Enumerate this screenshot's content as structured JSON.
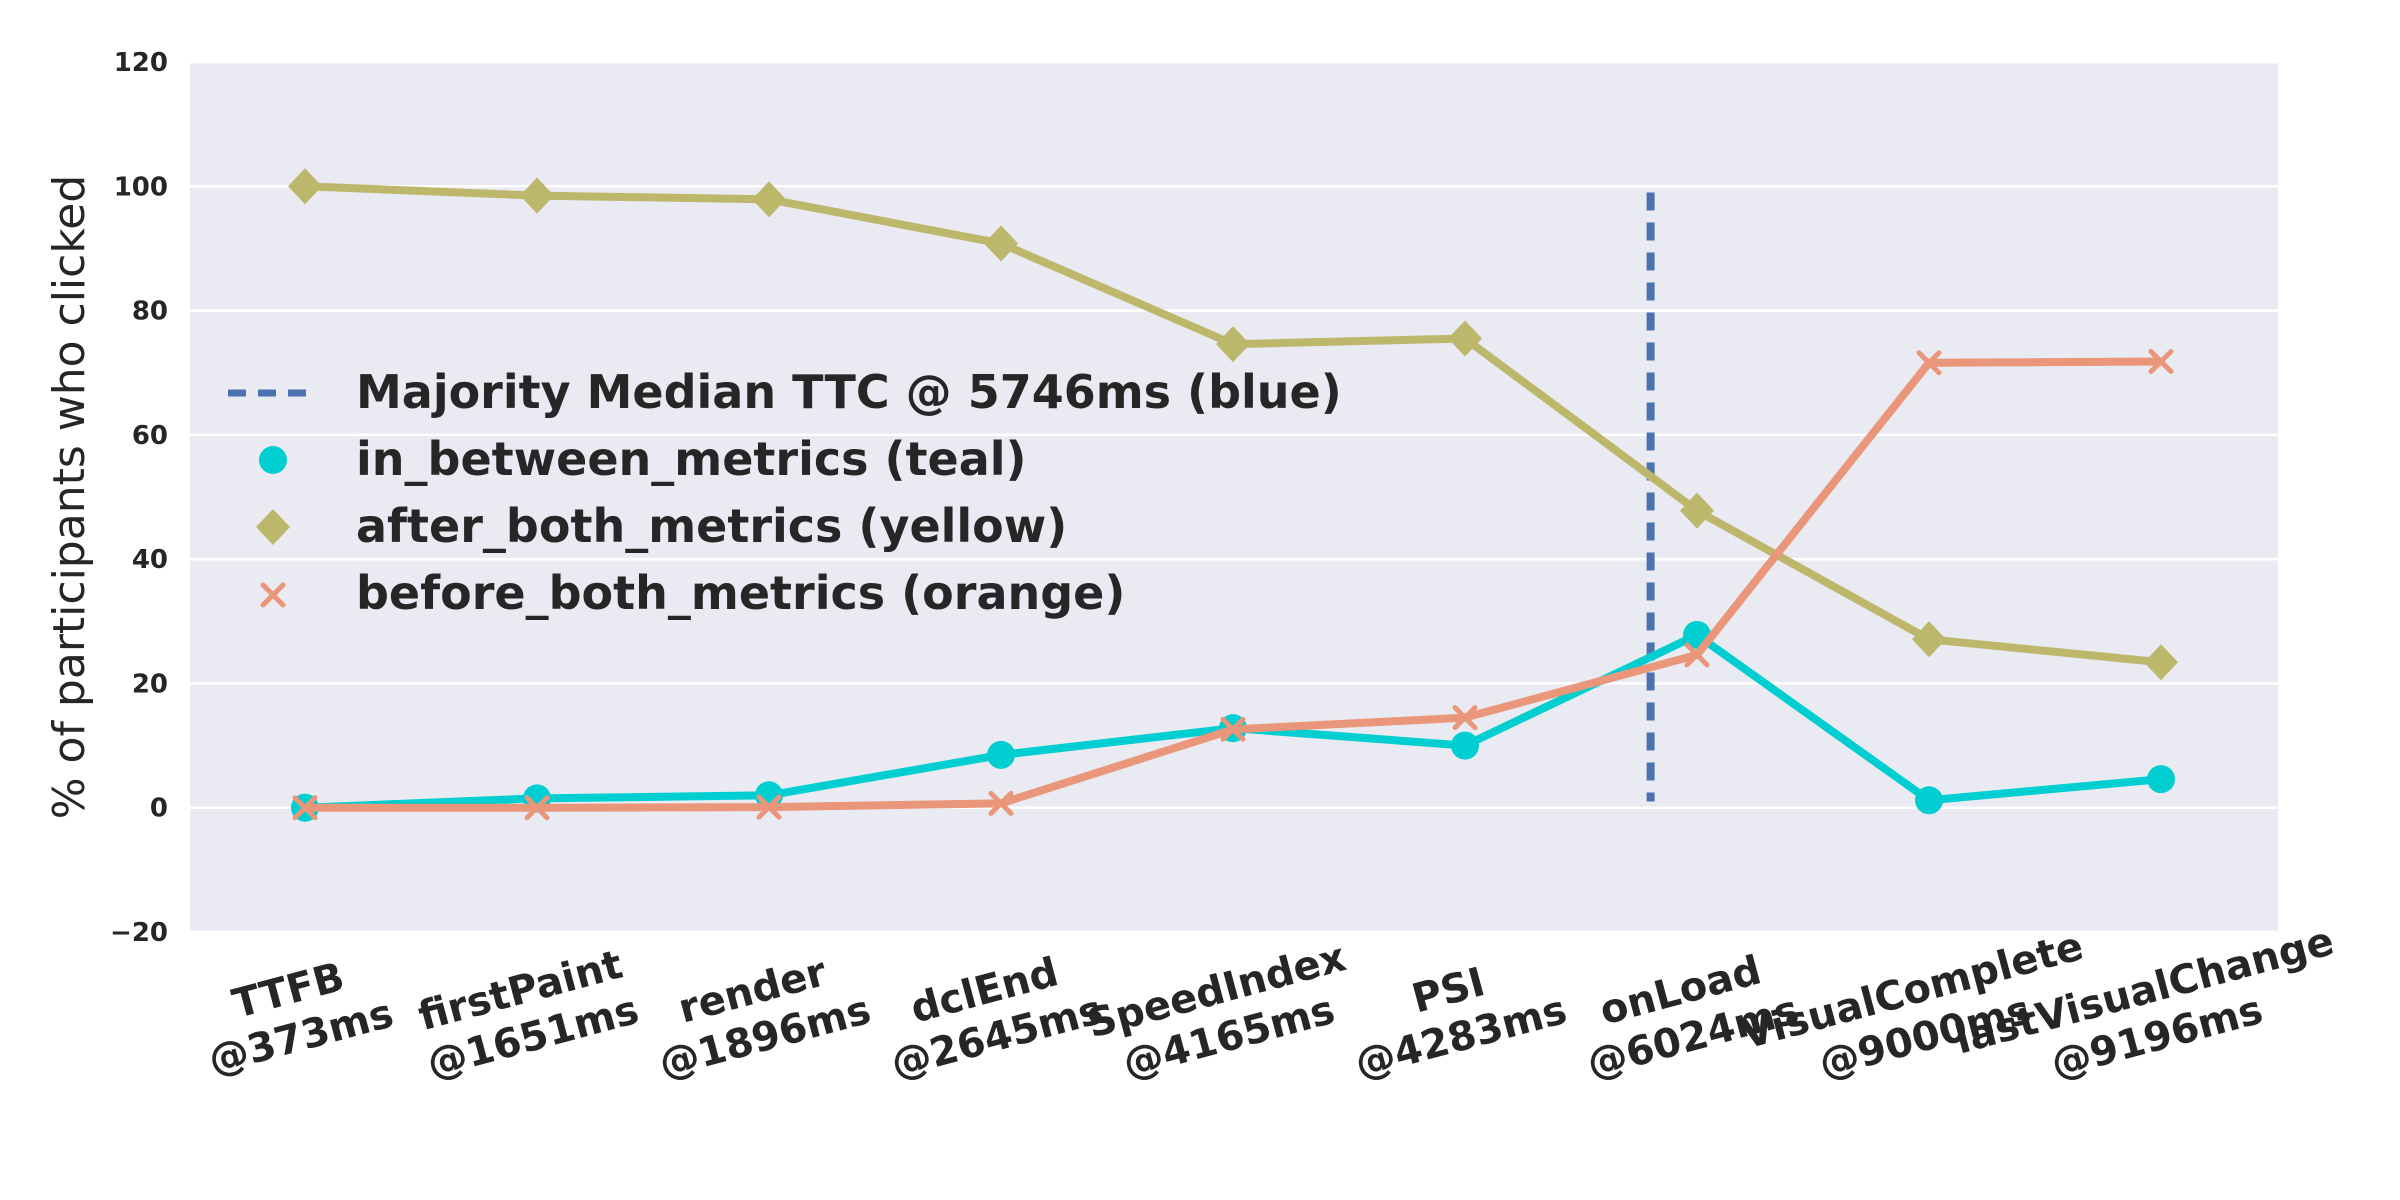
{
  "chart_data": {
    "type": "line",
    "ylabel": "% of participants who clicked",
    "ylim": [
      -20,
      120
    ],
    "yticks": [
      -20,
      0,
      20,
      40,
      60,
      80,
      100,
      120
    ],
    "ytick_labels": [
      "−20",
      "0",
      "20",
      "40",
      "60",
      "80",
      "100",
      "120"
    ],
    "grid": true,
    "legend_position": "center-left",
    "categories": [
      [
        "TTFB",
        "@373ms"
      ],
      [
        "firstPaint",
        "@1651ms"
      ],
      [
        "render",
        "@1896ms"
      ],
      [
        "dclEnd",
        "@2645ms"
      ],
      [
        "SpeedIndex",
        "@4165ms"
      ],
      [
        "PSI",
        "@4283ms"
      ],
      [
        "onLoad",
        "@6024ms"
      ],
      [
        "VisualComplete",
        "@9000ms"
      ],
      [
        "lastVisualChange",
        "@9196ms"
      ]
    ],
    "series": [
      {
        "name": "in_between_metrics (teal)",
        "color": "#00CED1",
        "marker": "circle",
        "values": [
          0,
          1.5,
          2,
          8.5,
          12.8,
          10,
          27.8,
          1.2,
          4.6
        ]
      },
      {
        "name": "after_both_metrics (yellow)",
        "color": "#BDB76B",
        "marker": "diamond",
        "values": [
          100,
          98.5,
          97.9,
          90.8,
          74.6,
          75.5,
          47.8,
          27.1,
          23.4
        ]
      },
      {
        "name": "before_both_metrics (orange)",
        "color": "#E9967A",
        "marker": "x",
        "values": [
          0,
          0,
          0.1,
          0.7,
          12.6,
          14.5,
          24.6,
          71.6,
          71.8
        ]
      }
    ],
    "vline": {
      "name": "Majority Median TTC @ 5746ms (blue)",
      "color": "#4C72B0",
      "x": 5.8,
      "ymin": 1,
      "ymax": 99
    }
  }
}
